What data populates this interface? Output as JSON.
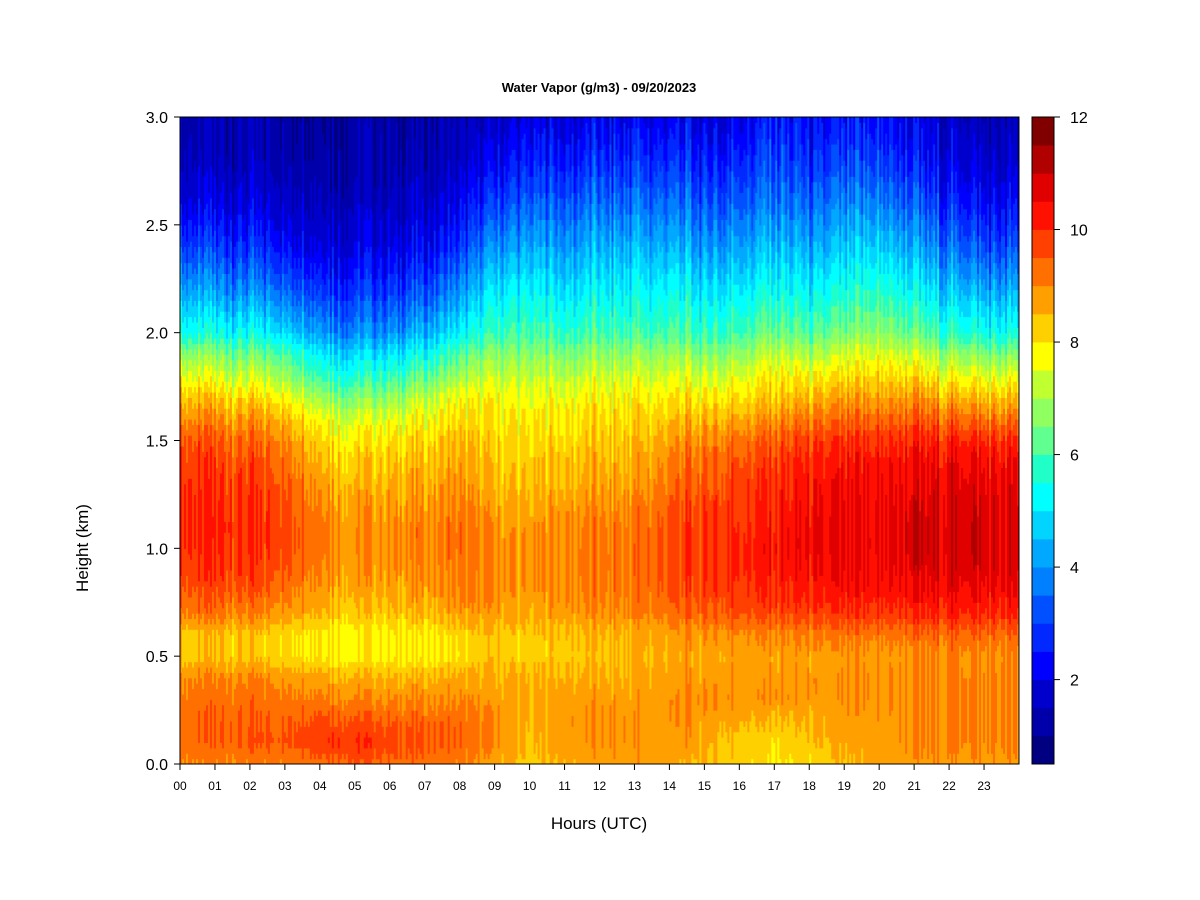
{
  "chart_data": {
    "type": "heatmap",
    "title": "Water Vapor (g/m3) - 09/20/2023",
    "xlabel": "Hours (UTC)",
    "ylabel": "Height (km)",
    "xlim": [
      0,
      24
    ],
    "ylim": [
      0,
      3
    ],
    "x_ticks": [
      "00",
      "01",
      "02",
      "03",
      "04",
      "05",
      "06",
      "07",
      "08",
      "09",
      "10",
      "11",
      "12",
      "13",
      "14",
      "15",
      "16",
      "17",
      "18",
      "19",
      "20",
      "21",
      "22",
      "23"
    ],
    "y_ticks": [
      "0.0",
      "0.5",
      "1.0",
      "1.5",
      "2.0",
      "2.5",
      "3.0"
    ],
    "colorbar": {
      "range": [
        0.5,
        12
      ],
      "tick_values": [
        2,
        4,
        6,
        8,
        10,
        12
      ],
      "tick_labels": [
        "2",
        "4",
        "6",
        "8",
        "10",
        "12"
      ],
      "levels": [
        0.5,
        1.25,
        2,
        2.5,
        3,
        3.5,
        4,
        4.5,
        5,
        5.5,
        6,
        6.5,
        7,
        7.5,
        8,
        8.5,
        9,
        9.5,
        10,
        10.5,
        11,
        12
      ],
      "colors": [
        "#000080",
        "#0000aa",
        "#0000cd",
        "#0000ff",
        "#0028ff",
        "#0050ff",
        "#0080ff",
        "#00a8ff",
        "#00d4ff",
        "#00ffff",
        "#20ffc8",
        "#60ff90",
        "#90ff60",
        "#c0ff30",
        "#ffff00",
        "#ffd000",
        "#ffa000",
        "#ff7000",
        "#ff4000",
        "#ff1000",
        "#e00000",
        "#b00000",
        "#800000"
      ]
    },
    "time_hours": [
      0,
      1,
      2,
      3,
      4,
      5,
      6,
      7,
      8,
      9,
      10,
      11,
      12,
      13,
      14,
      15,
      16,
      17,
      18,
      19,
      20,
      21,
      22,
      23,
      24
    ],
    "heights_km": [
      0.0,
      0.1,
      0.2,
      0.3,
      0.4,
      0.5,
      0.6,
      0.7,
      0.8,
      0.9,
      1.0,
      1.1,
      1.2,
      1.3,
      1.4,
      1.5,
      1.6,
      1.7,
      1.8,
      1.9,
      2.0,
      2.2,
      2.4,
      2.6,
      2.8,
      3.0
    ],
    "values": [
      [
        9.0,
        9.2,
        9.3,
        9.1,
        9.0,
        8.3,
        8.3,
        9.1,
        9.5,
        9.8,
        10.0,
        10.1,
        10.1,
        10.0,
        9.8,
        9.6,
        9.0,
        8.4,
        7.6,
        6.8,
        5.5,
        4.2,
        3.0,
        2.0,
        1.3,
        1.0
      ],
      [
        9.0,
        9.4,
        9.4,
        9.3,
        9.0,
        8.4,
        8.4,
        9.2,
        9.6,
        9.9,
        10.0,
        10.1,
        10.0,
        9.9,
        9.7,
        9.5,
        8.9,
        8.3,
        7.4,
        6.6,
        5.4,
        4.0,
        2.9,
        1.9,
        1.2,
        1.0
      ],
      [
        9.0,
        9.5,
        9.4,
        9.3,
        9.0,
        8.3,
        8.3,
        9.0,
        9.5,
        9.8,
        9.9,
        10.0,
        9.9,
        9.8,
        9.6,
        9.3,
        8.8,
        8.1,
        7.2,
        6.4,
        5.2,
        3.8,
        2.7,
        1.8,
        1.2,
        1.0
      ],
      [
        9.1,
        9.6,
        9.5,
        9.2,
        8.9,
        8.2,
        8.2,
        8.9,
        9.3,
        9.6,
        9.8,
        9.8,
        9.7,
        9.6,
        9.4,
        9.1,
        8.6,
        7.9,
        7.0,
        6.2,
        5.0,
        3.6,
        2.5,
        1.7,
        1.1,
        0.9
      ],
      [
        9.4,
        9.9,
        9.7,
        9.2,
        8.8,
        8.0,
        8.0,
        8.6,
        8.9,
        9.1,
        9.3,
        9.3,
        9.1,
        8.9,
        8.6,
        8.3,
        7.8,
        7.0,
        6.0,
        5.2,
        4.2,
        3.0,
        2.0,
        1.4,
        0.9,
        0.8
      ],
      [
        9.5,
        10.0,
        9.6,
        9.0,
        8.6,
        7.8,
        7.8,
        8.3,
        8.6,
        8.8,
        8.9,
        8.9,
        8.7,
        8.5,
        8.2,
        7.9,
        7.4,
        6.5,
        5.6,
        4.8,
        3.8,
        2.8,
        1.9,
        1.3,
        0.9,
        0.7
      ],
      [
        9.3,
        9.8,
        9.5,
        9.0,
        8.6,
        7.9,
        7.9,
        8.4,
        8.7,
        8.9,
        9.0,
        9.0,
        8.8,
        8.6,
        8.4,
        8.1,
        7.6,
        6.8,
        5.9,
        5.0,
        4.0,
        2.9,
        2.0,
        1.4,
        1.0,
        0.8
      ],
      [
        9.2,
        9.6,
        9.4,
        9.0,
        8.6,
        7.9,
        7.9,
        8.5,
        8.8,
        9.0,
        9.1,
        9.1,
        8.9,
        8.7,
        8.5,
        8.2,
        7.8,
        7.2,
        6.3,
        5.4,
        4.4,
        3.2,
        2.2,
        1.6,
        1.1,
        0.9
      ],
      [
        9.0,
        9.4,
        9.3,
        8.9,
        8.6,
        8.0,
        8.1,
        8.7,
        9.0,
        9.1,
        9.2,
        9.2,
        9.0,
        8.8,
        8.6,
        8.4,
        8.0,
        7.6,
        6.8,
        6.0,
        5.0,
        3.8,
        2.7,
        1.9,
        1.3,
        1.0
      ],
      [
        8.7,
        9.0,
        9.0,
        8.8,
        8.6,
        8.4,
        8.4,
        8.8,
        9.0,
        9.0,
        9.0,
        8.9,
        8.7,
        8.5,
        8.3,
        8.2,
        8.0,
        7.8,
        7.3,
        6.7,
        5.9,
        5.0,
        4.0,
        3.0,
        2.1,
        1.5
      ],
      [
        8.3,
        8.4,
        8.5,
        8.6,
        8.5,
        8.3,
        8.3,
        8.6,
        8.8,
        8.9,
        8.9,
        8.8,
        8.6,
        8.4,
        8.3,
        8.1,
        7.9,
        7.6,
        7.2,
        6.7,
        6.0,
        5.2,
        4.3,
        3.4,
        2.6,
        2.0
      ],
      [
        8.6,
        8.8,
        8.9,
        8.8,
        8.6,
        8.3,
        8.4,
        8.8,
        9.0,
        9.1,
        9.1,
        9.0,
        8.8,
        8.6,
        8.4,
        8.2,
        8.0,
        7.7,
        7.2,
        6.6,
        5.8,
        4.9,
        4.1,
        3.3,
        2.5,
        1.8
      ],
      [
        8.7,
        8.9,
        8.9,
        8.8,
        8.6,
        8.4,
        8.5,
        8.9,
        9.1,
        9.2,
        9.2,
        9.1,
        8.9,
        8.7,
        8.5,
        8.3,
        8.1,
        7.8,
        7.3,
        6.7,
        6.0,
        5.1,
        4.3,
        3.5,
        2.7,
        2.0
      ],
      [
        8.8,
        8.9,
        8.9,
        8.8,
        8.6,
        8.5,
        8.6,
        9.0,
        9.2,
        9.3,
        9.3,
        9.2,
        9.0,
        8.8,
        8.6,
        8.4,
        8.2,
        7.9,
        7.4,
        6.8,
        6.0,
        5.2,
        4.4,
        3.6,
        2.8,
        2.1
      ],
      [
        8.6,
        8.8,
        8.9,
        8.9,
        8.7,
        8.6,
        8.7,
        9.2,
        9.5,
        9.6,
        9.6,
        9.6,
        9.4,
        9.2,
        9.0,
        8.7,
        8.3,
        7.9,
        7.4,
        6.8,
        6.0,
        5.2,
        4.3,
        3.5,
        2.7,
        2.0
      ],
      [
        8.5,
        8.7,
        8.8,
        9.0,
        8.8,
        8.7,
        8.9,
        9.5,
        9.8,
        9.9,
        9.9,
        9.9,
        9.8,
        9.6,
        9.4,
        9.1,
        8.6,
        8.0,
        7.4,
        6.7,
        5.9,
        5.0,
        4.1,
        3.3,
        2.6,
        1.9
      ],
      [
        8.2,
        8.3,
        8.6,
        8.9,
        8.8,
        8.7,
        9.0,
        9.6,
        9.9,
        10.1,
        10.1,
        10.0,
        9.9,
        9.8,
        9.6,
        9.3,
        8.7,
        8.1,
        7.5,
        6.8,
        6.0,
        5.1,
        4.2,
        3.4,
        2.7,
        2.0
      ],
      [
        8.0,
        8.1,
        8.4,
        8.9,
        8.8,
        8.7,
        9.0,
        9.7,
        10.0,
        10.2,
        10.3,
        10.2,
        10.1,
        10.0,
        9.8,
        9.5,
        8.9,
        8.3,
        7.9,
        7.3,
        6.4,
        5.4,
        4.5,
        3.7,
        3.1,
        2.6
      ],
      [
        8.1,
        8.3,
        8.5,
        8.8,
        8.8,
        8.7,
        9.0,
        9.7,
        10.1,
        10.3,
        10.4,
        10.4,
        10.3,
        10.2,
        10.0,
        9.7,
        9.1,
        8.4,
        7.7,
        6.9,
        6.0,
        5.0,
        4.1,
        3.3,
        2.6,
        2.0
      ],
      [
        8.4,
        8.6,
        8.7,
        8.8,
        8.8,
        8.7,
        9.1,
        9.8,
        10.2,
        10.4,
        10.5,
        10.5,
        10.4,
        10.3,
        10.1,
        9.8,
        9.2,
        8.6,
        7.9,
        7.2,
        6.3,
        5.3,
        4.4,
        3.6,
        2.8,
        2.2
      ],
      [
        8.6,
        8.8,
        8.8,
        8.9,
        8.9,
        8.8,
        9.2,
        9.9,
        10.3,
        10.5,
        10.6,
        10.6,
        10.6,
        10.5,
        10.3,
        10.0,
        9.4,
        8.8,
        8.2,
        7.6,
        6.8,
        5.8,
        4.8,
        3.9,
        3.1,
        2.5
      ],
      [
        8.8,
        9.0,
        9.0,
        9.0,
        9.0,
        8.9,
        9.3,
        10.0,
        10.4,
        10.7,
        10.8,
        10.8,
        10.7,
        10.6,
        10.4,
        10.1,
        9.5,
        8.9,
        8.1,
        7.3,
        6.3,
        5.2,
        4.2,
        3.3,
        2.5,
        1.9
      ],
      [
        8.9,
        9.1,
        9.1,
        9.1,
        9.1,
        9.0,
        9.4,
        10.1,
        10.5,
        10.8,
        10.9,
        10.9,
        10.8,
        10.7,
        10.5,
        10.1,
        9.4,
        8.6,
        7.7,
        6.9,
        5.8,
        4.6,
        3.6,
        2.7,
        2.0,
        1.5
      ],
      [
        8.8,
        9.0,
        9.0,
        9.0,
        9.0,
        8.9,
        9.3,
        10.0,
        10.4,
        10.7,
        10.8,
        10.8,
        10.7,
        10.6,
        10.4,
        10.0,
        9.2,
        8.4,
        7.5,
        6.6,
        5.4,
        4.2,
        3.1,
        2.2,
        1.5,
        1.1
      ],
      [
        8.8,
        9.0,
        9.0,
        9.0,
        9.0,
        8.9,
        9.3,
        10.0,
        10.4,
        10.6,
        10.7,
        10.7,
        10.6,
        10.5,
        10.3,
        9.9,
        9.1,
        8.3,
        7.4,
        6.5,
        5.3,
        4.1,
        3.0,
        2.1,
        1.4,
        1.0
      ]
    ]
  }
}
